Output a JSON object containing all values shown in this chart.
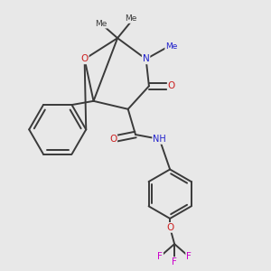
{
  "background_color": "#e8e8e8",
  "atom_colors": {
    "C": "#3a3a3a",
    "N": "#2020cc",
    "O": "#cc2020",
    "F": "#cc00cc",
    "H": "#707070"
  },
  "bond_color": "#3a3a3a",
  "bond_width": 1.4,
  "figsize": [
    3.0,
    3.0
  ],
  "dpi": 100,
  "xlim": [
    0.05,
    0.95
  ],
  "ylim": [
    0.05,
    0.95
  ]
}
